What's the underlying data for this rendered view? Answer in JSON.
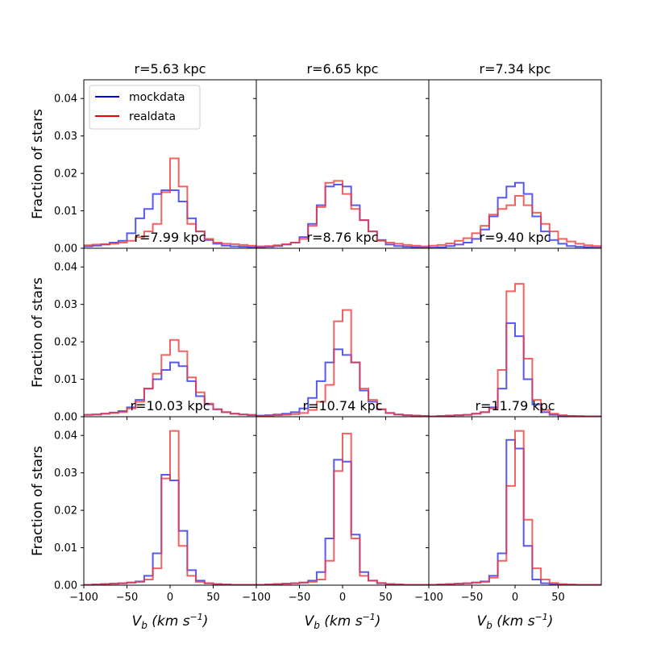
{
  "chart_data": {
    "type": "histogram-grid",
    "grid": {
      "rows": 3,
      "cols": 3
    },
    "xlim": [
      -100,
      100
    ],
    "ylim": [
      0,
      0.045
    ],
    "xticks": [
      -100,
      -50,
      0,
      50
    ],
    "xtick_labels": [
      "−100",
      "−50",
      "0",
      "50"
    ],
    "yticks": [
      0.0,
      0.01,
      0.02,
      0.03,
      0.04
    ],
    "ytick_labels": [
      "0.00",
      "0.01",
      "0.02",
      "0.03",
      "0.04"
    ],
    "ylabel": "Fraction of stars",
    "xlabel_main": "V",
    "xlabel_sub": "b",
    "xlabel_units": " (km s",
    "xlabel_exp": "−1",
    "xlabel_close": ")",
    "bin_edges": [
      -100,
      -90,
      -80,
      -70,
      -60,
      -50,
      -40,
      -30,
      -20,
      -10,
      0,
      10,
      20,
      30,
      40,
      50,
      60,
      70,
      80,
      90,
      100
    ],
    "legend": {
      "entries": [
        {
          "name": "mockdata",
          "color": "#0000ee"
        },
        {
          "name": "realdata",
          "color": "#ee0000"
        }
      ],
      "placement": "upper-left of first panel"
    },
    "series_colors": {
      "mock": "#3b3bf0",
      "real": "#f03b3b"
    },
    "panels": [
      {
        "title": "r=5.63 kpc",
        "mock": [
          0.0005,
          0.0007,
          0.001,
          0.0015,
          0.002,
          0.004,
          0.008,
          0.0105,
          0.0145,
          0.0155,
          0.0155,
          0.0125,
          0.008,
          0.0045,
          0.0022,
          0.0012,
          0.0007,
          0.0005,
          0.0004,
          0.0003
        ],
        "real": [
          0.0008,
          0.001,
          0.0011,
          0.0012,
          0.0015,
          0.002,
          0.003,
          0.0045,
          0.0065,
          0.015,
          0.024,
          0.0165,
          0.0065,
          0.0045,
          0.0025,
          0.0015,
          0.0012,
          0.0011,
          0.0009,
          0.0007
        ]
      },
      {
        "title": "r=6.65 kpc",
        "mock": [
          0.0003,
          0.0004,
          0.0006,
          0.001,
          0.0015,
          0.003,
          0.0065,
          0.0115,
          0.0165,
          0.017,
          0.0165,
          0.0115,
          0.0075,
          0.0045,
          0.0022,
          0.001,
          0.0006,
          0.0004,
          0.0003,
          0.0002
        ],
        "real": [
          0.0005,
          0.0006,
          0.0008,
          0.0011,
          0.0015,
          0.0025,
          0.006,
          0.011,
          0.0175,
          0.018,
          0.0145,
          0.0105,
          0.0075,
          0.0045,
          0.002,
          0.0015,
          0.0012,
          0.0009,
          0.0007,
          0.0005
        ]
      },
      {
        "title": "r=7.34 kpc",
        "mock": [
          0.0002,
          0.0003,
          0.0006,
          0.001,
          0.0015,
          0.0025,
          0.005,
          0.0085,
          0.0135,
          0.0165,
          0.0175,
          0.0145,
          0.0085,
          0.0045,
          0.0022,
          0.0012,
          0.0006,
          0.0004,
          0.0003,
          0.0002
        ],
        "real": [
          0.0007,
          0.0009,
          0.0013,
          0.002,
          0.0027,
          0.004,
          0.006,
          0.009,
          0.0105,
          0.0115,
          0.014,
          0.0115,
          0.0095,
          0.0065,
          0.0045,
          0.0025,
          0.0018,
          0.0012,
          0.0008,
          0.0006
        ]
      },
      {
        "title": "r=7.99 kpc",
        "mock": [
          0.0005,
          0.0006,
          0.0008,
          0.0011,
          0.0015,
          0.0025,
          0.0045,
          0.0075,
          0.01,
          0.0125,
          0.0145,
          0.0135,
          0.0095,
          0.0055,
          0.0033,
          0.002,
          0.0012,
          0.0008,
          0.0006,
          0.0004
        ],
        "real": [
          0.0005,
          0.0006,
          0.0008,
          0.001,
          0.0012,
          0.0022,
          0.004,
          0.0075,
          0.0115,
          0.0165,
          0.0205,
          0.0175,
          0.0105,
          0.0065,
          0.0035,
          0.002,
          0.0012,
          0.0008,
          0.0006,
          0.0005
        ]
      },
      {
        "title": "r=8.76 kpc",
        "mock": [
          0.0003,
          0.0004,
          0.0006,
          0.0008,
          0.0012,
          0.0022,
          0.005,
          0.0095,
          0.0145,
          0.018,
          0.0165,
          0.0145,
          0.007,
          0.004,
          0.002,
          0.001,
          0.0006,
          0.0004,
          0.0003,
          0.0002
        ],
        "real": [
          0.0002,
          0.0003,
          0.0004,
          0.0005,
          0.0007,
          0.001,
          0.0018,
          0.004,
          0.0085,
          0.0255,
          0.0285,
          0.0145,
          0.0075,
          0.0045,
          0.002,
          0.001,
          0.0006,
          0.0004,
          0.0003,
          0.0002
        ]
      },
      {
        "title": "r=9.40 kpc",
        "mock": [
          0.0001,
          0.0002,
          0.0003,
          0.0004,
          0.0005,
          0.0008,
          0.0012,
          0.0025,
          0.0075,
          0.025,
          0.0215,
          0.01,
          0.0033,
          0.0012,
          0.0005,
          0.0003,
          0.0002,
          0.0001,
          0.0001,
          0.0001
        ],
        "real": [
          0.0001,
          0.0002,
          0.0003,
          0.0004,
          0.0005,
          0.0008,
          0.0012,
          0.0022,
          0.0125,
          0.0335,
          0.0355,
          0.0155,
          0.0045,
          0.0018,
          0.0008,
          0.0004,
          0.0002,
          0.0002,
          0.0001,
          0.0001
        ]
      },
      {
        "title": "r=10.03 kpc",
        "mock": [
          0.0001,
          0.0002,
          0.0003,
          0.0004,
          0.0005,
          0.0007,
          0.001,
          0.0025,
          0.0085,
          0.0295,
          0.028,
          0.0145,
          0.004,
          0.0012,
          0.0005,
          0.0003,
          0.0002,
          0.0001,
          0.0001,
          0.0001
        ],
        "real": [
          0.0001,
          0.0002,
          0.0003,
          0.0004,
          0.0005,
          0.0007,
          0.0009,
          0.0015,
          0.0045,
          0.0285,
          0.0412,
          0.0105,
          0.0025,
          0.0009,
          0.0005,
          0.0003,
          0.0002,
          0.0001,
          0.0001,
          0.0001
        ]
      },
      {
        "title": "r=10.74 kpc",
        "mock": [
          0.0001,
          0.0002,
          0.0003,
          0.0004,
          0.0005,
          0.0007,
          0.0012,
          0.0035,
          0.0125,
          0.0335,
          0.033,
          0.0135,
          0.0035,
          0.0012,
          0.0005,
          0.0003,
          0.0002,
          0.0001,
          0.0001,
          0.0001
        ],
        "real": [
          0.0001,
          0.0002,
          0.0003,
          0.0004,
          0.0005,
          0.0007,
          0.0009,
          0.0015,
          0.0065,
          0.0305,
          0.0405,
          0.0125,
          0.0025,
          0.0012,
          0.0006,
          0.0003,
          0.0002,
          0.0001,
          0.0001,
          0.0001
        ]
      },
      {
        "title": "r=11.79 kpc",
        "mock": [
          0.0001,
          0.0002,
          0.0003,
          0.0004,
          0.0005,
          0.0007,
          0.001,
          0.0025,
          0.0085,
          0.0388,
          0.0365,
          0.0105,
          0.0015,
          0.0005,
          0.0003,
          0.0002,
          0.0001,
          0.0001,
          0.0001,
          0.0001
        ],
        "real": [
          0.0001,
          0.0002,
          0.0003,
          0.0004,
          0.0005,
          0.0007,
          0.0009,
          0.002,
          0.0065,
          0.0265,
          0.0412,
          0.0175,
          0.0045,
          0.0015,
          0.0006,
          0.0003,
          0.0002,
          0.0001,
          0.0001,
          0.0001
        ]
      }
    ]
  }
}
